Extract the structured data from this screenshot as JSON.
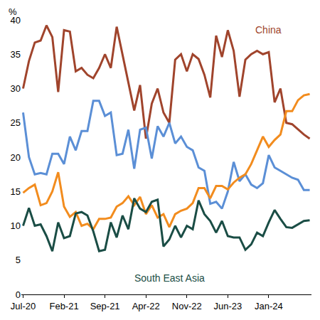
{
  "chart_data": {
    "type": "line",
    "ylabel": "%",
    "categories": [
      "Jul-20",
      null,
      null,
      null,
      null,
      null,
      null,
      "Feb-21",
      null,
      null,
      null,
      null,
      null,
      null,
      "Sep-21",
      null,
      null,
      null,
      null,
      null,
      null,
      "Apr-22",
      null,
      null,
      null,
      null,
      null,
      null,
      "Nov-22",
      null,
      null,
      null,
      null,
      null,
      null,
      "Jun-23",
      null,
      null,
      null,
      null,
      null,
      null,
      "Jan-24",
      null,
      null,
      null,
      null,
      null,
      null,
      null
    ],
    "series": [
      {
        "name": "China",
        "color": "#a0442c",
        "values": [
          30,
          34,
          36.7,
          37,
          39.2,
          37.5,
          29.5,
          38.5,
          38.3,
          32.5,
          33,
          32,
          31.5,
          33,
          35,
          33,
          39,
          35,
          31,
          26.8,
          30.5,
          22.7,
          27.8,
          30,
          26.5,
          25,
          34.2,
          35,
          32.5,
          35,
          34.3,
          32,
          28.7,
          37.7,
          34.6,
          38.5,
          35.5,
          28.8,
          34.2,
          35,
          35.5,
          35,
          35.3,
          28,
          30,
          25,
          24.8,
          24,
          23.3,
          22.7
        ]
      },
      {
        "color": "#5b8fd6",
        "values": [
          26.5,
          20,
          17.5,
          17.7,
          17.5,
          20.5,
          20.5,
          19,
          23,
          21,
          23.8,
          23.8,
          28.2,
          28.2,
          26,
          26.5,
          20.3,
          20.5,
          24,
          18.3,
          24,
          24.3,
          19.8,
          24.5,
          23,
          25,
          22,
          23,
          21.5,
          21,
          18.5,
          18,
          13.2,
          13.5,
          12.5,
          15,
          19.3,
          16.5,
          17.5,
          16,
          15.5,
          16.2,
          20.3,
          18.5,
          18,
          17.5,
          17,
          16.7,
          15.2,
          15.2
        ]
      },
      {
        "color": "#f28c1e",
        "values": [
          14.8,
          15.5,
          16,
          13,
          13.3,
          15,
          17.8,
          12.8,
          11.3,
          12,
          10,
          10.3,
          9.5,
          11,
          11,
          11.2,
          12.8,
          13.3,
          14.3,
          13,
          14.2,
          11.7,
          13,
          11.2,
          11.7,
          9.8,
          11.7,
          12.2,
          12.5,
          13.3,
          15.5,
          15.5,
          14,
          15.8,
          15.8,
          15.3,
          16.3,
          17,
          17.5,
          19,
          21,
          23,
          21.5,
          22.5,
          23.3,
          26.7,
          26.7,
          28.3,
          29,
          29.2
        ]
      },
      {
        "name": "South East Asia",
        "color": "#1a4d45",
        "values": [
          10,
          12.6,
          10,
          10.2,
          8.5,
          6.3,
          10.5,
          8.2,
          8.5,
          11.8,
          12,
          11.5,
          9.2,
          6.3,
          6.5,
          10.5,
          8.3,
          11.5,
          9.5,
          14,
          12.5,
          12,
          13.5,
          13.8,
          7,
          8,
          10,
          8.3,
          10,
          9.5,
          13.7,
          11.7,
          10.7,
          9,
          10.7,
          8.5,
          8.3,
          8.3,
          6.5,
          7.3,
          9,
          8.5,
          10.5,
          12.3,
          11,
          9.8,
          9.7,
          10.2,
          10.7,
          10.8
        ]
      }
    ],
    "ylim": [
      0,
      40
    ],
    "yticks": [
      0,
      5,
      10,
      15,
      20,
      25,
      30,
      35,
      40
    ],
    "grid": false
  }
}
